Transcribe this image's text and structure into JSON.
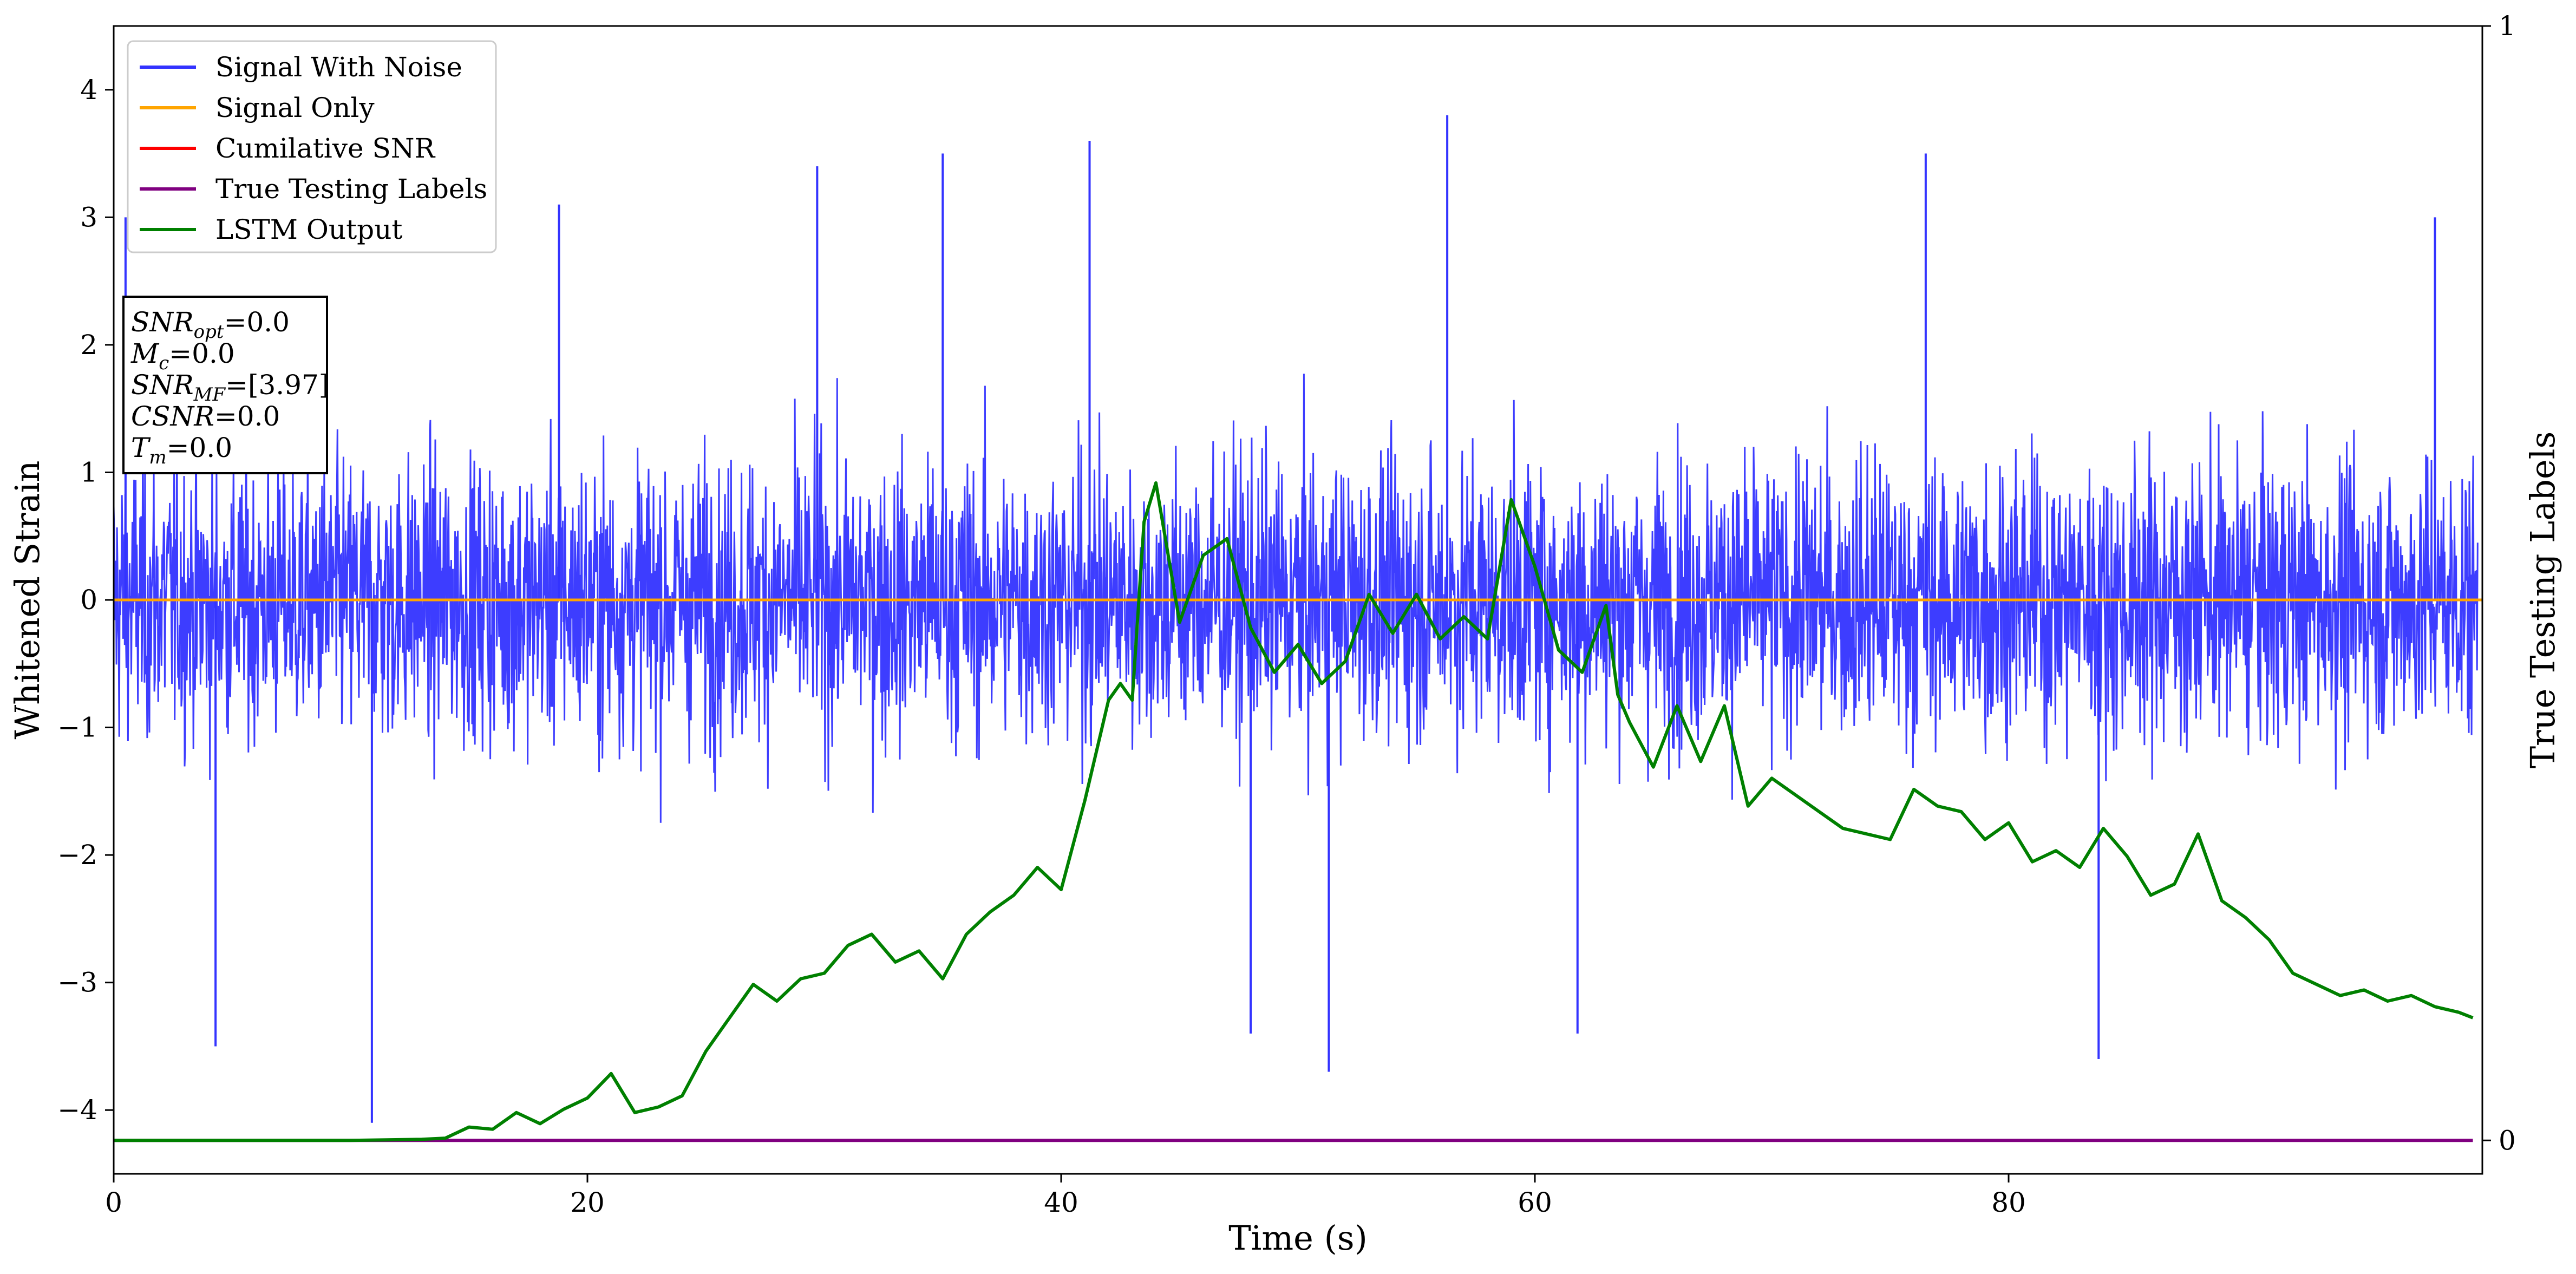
{
  "chart_data": {
    "type": "line",
    "xlabel": "Time (s)",
    "ylabel": "Whitened Strain",
    "y2label": "True Testing Labels",
    "xlim": [
      0,
      100
    ],
    "ylim": [
      -4.5,
      4.5
    ],
    "y2lim": [
      -0.03,
      1
    ],
    "xticks": [
      "0",
      "20",
      "40",
      "60",
      "80"
    ],
    "yticks": [
      "4",
      "3",
      "2",
      "1",
      "0",
      "−1",
      "−2",
      "−3",
      "−4"
    ],
    "y2ticks": [
      "1",
      "0"
    ],
    "legend_position": "upper-left",
    "grid": false,
    "series": [
      {
        "name": "Signal With Noise",
        "color": "#3333ff",
        "description_of_shape": "dense white noise around 0, roughly between -2.3 and 2.3 with spikes to 3.8 and -4.1",
        "spikes": [
          {
            "x": 0.5,
            "y": 3.0
          },
          {
            "x": 4.3,
            "y": -3.5
          },
          {
            "x": 10.9,
            "y": -4.1
          },
          {
            "x": 18.8,
            "y": 3.1
          },
          {
            "x": 29.7,
            "y": 3.4
          },
          {
            "x": 35.0,
            "y": 3.5
          },
          {
            "x": 41.2,
            "y": 3.6
          },
          {
            "x": 48.0,
            "y": -3.4
          },
          {
            "x": 51.3,
            "y": -3.7
          },
          {
            "x": 56.3,
            "y": 3.8
          },
          {
            "x": 61.8,
            "y": -3.4
          },
          {
            "x": 76.5,
            "y": 3.5
          },
          {
            "x": 83.8,
            "y": -3.6
          },
          {
            "x": 98.0,
            "y": 3.0
          }
        ]
      },
      {
        "name": "Signal Only",
        "color": "#ffa500",
        "x": [
          0,
          100
        ],
        "y": [
          0,
          0
        ]
      },
      {
        "name": "Cumilative SNR",
        "color": "#ff0000",
        "x": [],
        "y": []
      },
      {
        "name": "True Testing Labels",
        "color": "#800080",
        "axis": "right",
        "x": [
          0,
          99.6
        ],
        "y": [
          0,
          0
        ]
      },
      {
        "name": "LSTM Output",
        "color": "#008000",
        "x": [
          0,
          10,
          13,
          14,
          15,
          16,
          17,
          18,
          19,
          20,
          21,
          22,
          23,
          24,
          25,
          26,
          27,
          28,
          29,
          30,
          31,
          32,
          33,
          34,
          35,
          36,
          37,
          38,
          39,
          40,
          41,
          42,
          42.5,
          43,
          43.5,
          44,
          45,
          46,
          47,
          48,
          49,
          50,
          51,
          52,
          53,
          54,
          55,
          56,
          57,
          58,
          59,
          60,
          61,
          62,
          63,
          63.5,
          64,
          65,
          66,
          67,
          68,
          69,
          70,
          71,
          72,
          73,
          74,
          75,
          76,
          77,
          78,
          79,
          80,
          81,
          82,
          83,
          84,
          85,
          86,
          87,
          88,
          89,
          90,
          91,
          92,
          93,
          94,
          95,
          96,
          97,
          98,
          99,
          99.6
        ],
        "y": [
          0.0,
          0.0,
          0.001,
          0.002,
          0.012,
          0.01,
          0.025,
          0.015,
          0.028,
          0.038,
          0.06,
          0.025,
          0.03,
          0.04,
          0.08,
          0.11,
          0.14,
          0.125,
          0.145,
          0.15,
          0.175,
          0.185,
          0.16,
          0.17,
          0.145,
          0.185,
          0.205,
          0.22,
          0.245,
          0.225,
          0.305,
          0.395,
          0.41,
          0.395,
          0.555,
          0.59,
          0.465,
          0.525,
          0.54,
          0.46,
          0.42,
          0.445,
          0.41,
          0.43,
          0.49,
          0.455,
          0.49,
          0.45,
          0.47,
          0.45,
          0.575,
          0.515,
          0.44,
          0.42,
          0.48,
          0.4,
          0.375,
          0.335,
          0.39,
          0.34,
          0.39,
          0.3,
          0.325,
          0.31,
          0.295,
          0.28,
          0.275,
          0.27,
          0.315,
          0.3,
          0.295,
          0.27,
          0.285,
          0.25,
          0.26,
          0.245,
          0.28,
          0.255,
          0.22,
          0.23,
          0.275,
          0.215,
          0.2,
          0.18,
          0.15,
          0.14,
          0.13,
          0.135,
          0.125,
          0.13,
          0.12,
          0.115,
          0.11
        ]
      }
    ],
    "annotation": {
      "lines": [
        {
          "base": "SNR",
          "sub": "opt",
          "value": "=0.0"
        },
        {
          "base": "M",
          "sub": "c",
          "value": "=0.0"
        },
        {
          "base": "SNR",
          "sub": "MF",
          "value": "=[3.97]"
        },
        {
          "base": "CSNR",
          "sub": "",
          "value": "=0.0"
        },
        {
          "base": "T",
          "sub": "m",
          "value": "=0.0"
        }
      ]
    }
  }
}
